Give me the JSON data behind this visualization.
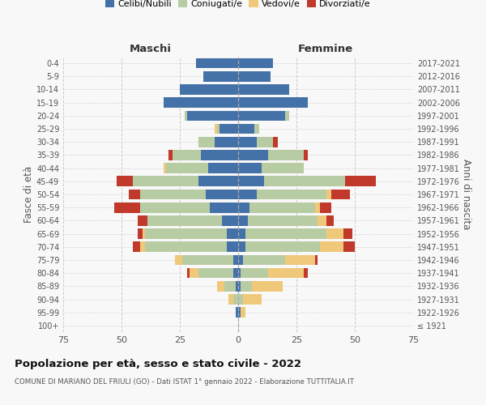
{
  "age_groups": [
    "100+",
    "95-99",
    "90-94",
    "85-89",
    "80-84",
    "75-79",
    "70-74",
    "65-69",
    "60-64",
    "55-59",
    "50-54",
    "45-49",
    "40-44",
    "35-39",
    "30-34",
    "25-29",
    "20-24",
    "15-19",
    "10-14",
    "5-9",
    "0-4"
  ],
  "birth_years": [
    "≤ 1921",
    "1922-1926",
    "1927-1931",
    "1932-1936",
    "1937-1941",
    "1942-1946",
    "1947-1951",
    "1952-1956",
    "1957-1961",
    "1962-1966",
    "1967-1971",
    "1972-1976",
    "1977-1981",
    "1982-1986",
    "1987-1991",
    "1992-1996",
    "1997-2001",
    "2002-2006",
    "2007-2011",
    "2012-2016",
    "2017-2021"
  ],
  "maschi": {
    "celibi": [
      0,
      1,
      0,
      1,
      2,
      2,
      5,
      5,
      7,
      12,
      14,
      17,
      13,
      16,
      10,
      8,
      22,
      32,
      25,
      15,
      18
    ],
    "coniugati": [
      0,
      0,
      2,
      5,
      15,
      22,
      35,
      35,
      32,
      30,
      28,
      28,
      18,
      12,
      7,
      1,
      1,
      0,
      0,
      0,
      0
    ],
    "vedovi": [
      0,
      0,
      2,
      3,
      4,
      3,
      2,
      1,
      0,
      0,
      0,
      0,
      1,
      0,
      0,
      1,
      0,
      0,
      0,
      0,
      0
    ],
    "divorziati": [
      0,
      0,
      0,
      0,
      1,
      0,
      3,
      2,
      4,
      11,
      5,
      7,
      0,
      2,
      0,
      0,
      0,
      0,
      0,
      0,
      0
    ]
  },
  "femmine": {
    "nubili": [
      0,
      1,
      0,
      1,
      1,
      2,
      3,
      3,
      4,
      5,
      8,
      11,
      10,
      13,
      8,
      7,
      20,
      30,
      22,
      14,
      15
    ],
    "coniugate": [
      0,
      0,
      2,
      5,
      12,
      18,
      32,
      35,
      30,
      28,
      30,
      35,
      18,
      15,
      7,
      2,
      2,
      0,
      0,
      0,
      0
    ],
    "vedove": [
      0,
      2,
      8,
      13,
      15,
      13,
      10,
      7,
      4,
      2,
      2,
      0,
      0,
      0,
      0,
      0,
      0,
      0,
      0,
      0,
      0
    ],
    "divorziate": [
      0,
      0,
      0,
      0,
      2,
      1,
      5,
      4,
      3,
      5,
      8,
      13,
      0,
      2,
      2,
      0,
      0,
      0,
      0,
      0,
      0
    ]
  },
  "colors": {
    "celibi": "#4472a8",
    "coniugati": "#b8cca4",
    "vedovi": "#f0c87a",
    "divorziati": "#c0392b"
  },
  "xlim": 75,
  "title": "Popolazione per età, sesso e stato civile - 2022",
  "subtitle": "COMUNE DI MARIANO DEL FRIULI (GO) - Dati ISTAT 1° gennaio 2022 - Elaborazione TUTTITALIA.IT",
  "ylabel_left": "Fasce di età",
  "ylabel_right": "Anni di nascita",
  "xlabel_left": "Maschi",
  "xlabel_right": "Femmine",
  "bg_color": "#f8f8f8"
}
